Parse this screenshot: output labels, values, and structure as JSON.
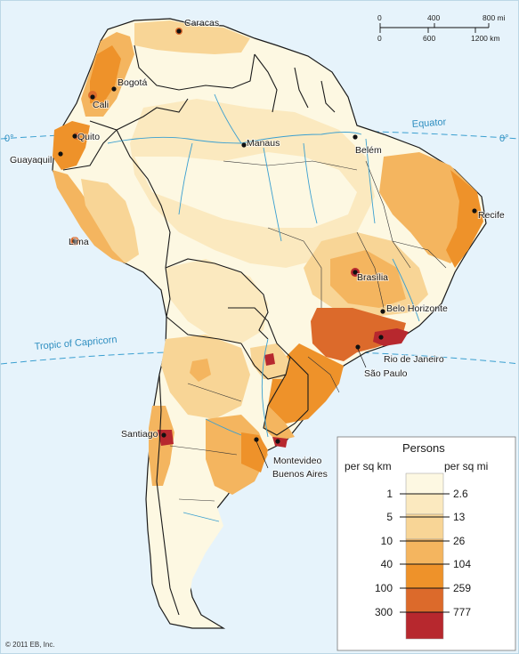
{
  "map": {
    "lines": {
      "equator_label": "Equator",
      "equator_degree_left": "0°",
      "equator_degree_right": "0°",
      "tropic_label": "Tropic of Capricorn"
    },
    "cities": {
      "caracas": "Caracas",
      "bogota": "Bogotá",
      "cali": "Cali",
      "quito": "Quito",
      "guayaquil": "Guayaquil",
      "manaus": "Manaus",
      "belem": "Belém",
      "recife": "Recife",
      "lima": "Lima",
      "brasilia": "Brasília",
      "belo_horizonte": "Belo Horizonte",
      "rio": "Rio de Janeiro",
      "sao_paulo": "São Paulo",
      "santiago": "Santiago",
      "montevideo": "Montevideo",
      "buenos_aires": "Buenos Aires"
    },
    "scale_bar": {
      "mi_ticks": [
        "0",
        "400",
        "800 mi"
      ],
      "km_ticks": [
        "0",
        "600",
        "1200 km"
      ]
    },
    "copyright": "© 2011 EB, Inc.",
    "colors": {
      "ocean": "#e6f3fb",
      "water_line": "#3a9fd0",
      "border": "#1a1a1a"
    }
  },
  "legend": {
    "title": "Persons",
    "left_header": "per sq km",
    "right_header": "per sq mi",
    "thresholds_km": [
      "1",
      "5",
      "10",
      "40",
      "100",
      "300"
    ],
    "thresholds_mi": [
      "2.6",
      "13",
      "26",
      "104",
      "259",
      "777"
    ],
    "swatches": [
      "#fdf8e2",
      "#fbe9bf",
      "#f8d596",
      "#f4b55f",
      "#ee922a",
      "#dc6a2b",
      "#b7282e"
    ]
  }
}
